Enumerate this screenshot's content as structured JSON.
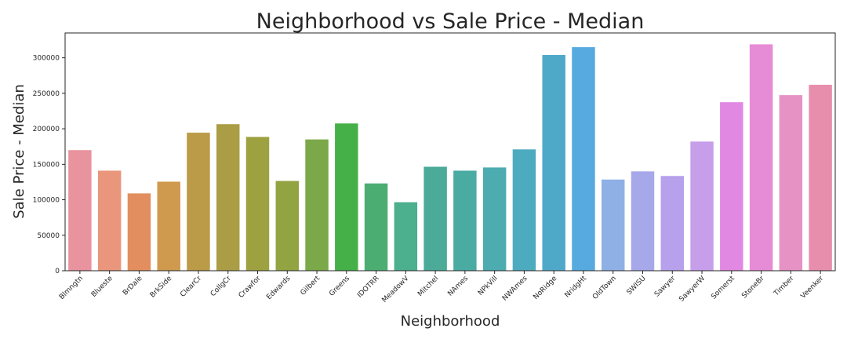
{
  "chart_data": {
    "type": "bar",
    "title": "Neighborhood vs Sale Price - Median",
    "xlabel": "Neighborhood",
    "ylabel": "Sale Price - Median",
    "ylim": [
      0,
      335000
    ],
    "yticks": [
      0,
      50000,
      100000,
      150000,
      200000,
      250000,
      300000
    ],
    "ytick_labels": [
      "0",
      "50000",
      "100000",
      "150000",
      "200000",
      "250000",
      "300000"
    ],
    "grid": false,
    "categories": [
      "Blmngtn",
      "Blueste",
      "BrDale",
      "BrkSide",
      "ClearCr",
      "CollgCr",
      "Crawfor",
      "Edwards",
      "Gilbert",
      "Greens",
      "IDOTRR",
      "MeadowV",
      "Mitchel",
      "NAmes",
      "NPkVill",
      "NWAmes",
      "NoRidge",
      "NridgHt",
      "OldTown",
      "SWISU",
      "Sawyer",
      "SawyerW",
      "Somerst",
      "StoneBr",
      "Timber",
      "Veenker"
    ],
    "values": [
      170000,
      141000,
      109000,
      125500,
      194500,
      206500,
      188500,
      126500,
      185000,
      207500,
      123000,
      96500,
      146500,
      141000,
      145500,
      171000,
      304000,
      315000,
      128500,
      140000,
      133500,
      182000,
      237500,
      319000,
      247500,
      262000
    ],
    "colors": [
      "#e8939e",
      "#e9967c",
      "#e28e5e",
      "#cf9a4e",
      "#bb9a48",
      "#aa9d45",
      "#9da140",
      "#92a441",
      "#7ba848",
      "#45b048",
      "#4cad72",
      "#4caf8e",
      "#4baa98",
      "#4aaba3",
      "#4cacb0",
      "#4dabbf",
      "#4ea9c9",
      "#56aae0",
      "#8eb0e5",
      "#a7a8ea",
      "#b7a1ec",
      "#c79eea",
      "#e188e3",
      "#e68bd5",
      "#e692c5",
      "#e78ead"
    ]
  }
}
